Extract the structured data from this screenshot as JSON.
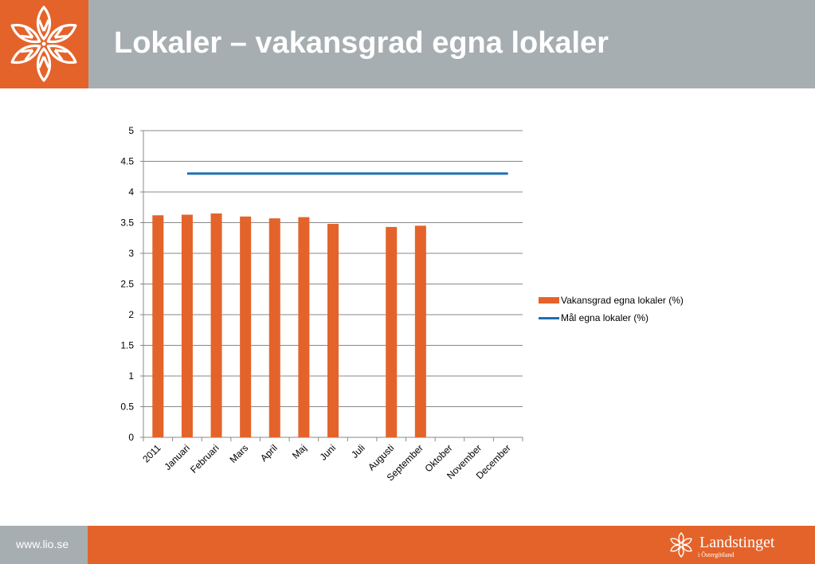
{
  "header": {
    "title": "Lokaler – vakansgrad egna lokaler"
  },
  "footer": {
    "url": "www.lio.se",
    "brand": "Landstinget",
    "brand_sub": "i Östergötland"
  },
  "icons": {
    "header_logo": "flower-logo-icon",
    "footer_logo": "flower-logo-icon"
  },
  "colors": {
    "accent": "#e4632a",
    "header_gray": "#a7aeb2",
    "line": "#1f6fb2",
    "grid": "#888888"
  },
  "chart_data": {
    "type": "bar",
    "categories": [
      "2011",
      "Januari",
      "Februari",
      "Mars",
      "April",
      "Maj",
      "Juni",
      "Juli",
      "Augusti",
      "September",
      "Oktober",
      "November",
      "December"
    ],
    "series": [
      {
        "name": "Vakansgrad egna lokaler (%)",
        "type": "bar",
        "color": "#e4632a",
        "values": [
          3.62,
          3.63,
          3.65,
          3.6,
          3.57,
          3.59,
          3.48,
          null,
          3.43,
          3.45,
          null,
          null,
          null
        ]
      },
      {
        "name": "Mål egna lokaler (%)",
        "type": "line",
        "color": "#1f6fb2",
        "values": [
          null,
          4.3,
          4.3,
          4.3,
          4.3,
          4.3,
          4.3,
          4.3,
          4.3,
          4.3,
          4.3,
          4.3,
          4.3
        ]
      }
    ],
    "yticks": [
      "0",
      "0.5",
      "1",
      "1.5",
      "2",
      "2.5",
      "3",
      "3.5",
      "4",
      "4.5",
      "5"
    ],
    "ylim": [
      0,
      5
    ],
    "grid": true,
    "legend": "right"
  }
}
